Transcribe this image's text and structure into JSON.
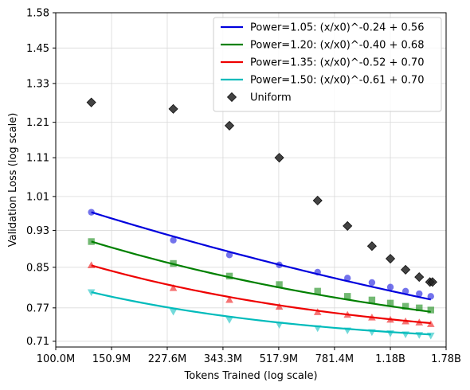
{
  "chart_data": {
    "type": "scatter",
    "xlabel": "Tokens Trained (log scale)",
    "ylabel": "Validation Loss (log scale)",
    "x_scale": "log",
    "y_scale": "log",
    "xlim": [
      100000000,
      1780000000
    ],
    "ylim": [
      0.7,
      1.58
    ],
    "grid": true,
    "legend_position": "top-right",
    "x_ticks": [
      {
        "value": 100000000,
        "label": "100.0M"
      },
      {
        "value": 150900000,
        "label": "150.9M"
      },
      {
        "value": 227600000,
        "label": "227.6M"
      },
      {
        "value": 343300000,
        "label": "343.3M"
      },
      {
        "value": 517900000,
        "label": "517.9M"
      },
      {
        "value": 781400000,
        "label": "781.4M"
      },
      {
        "value": 1180000000,
        "label": "1.18B"
      },
      {
        "value": 1780000000,
        "label": "1.78B"
      }
    ],
    "y_ticks": [
      {
        "value": 0.71,
        "label": "0.71"
      },
      {
        "value": 0.77,
        "label": "0.77"
      },
      {
        "value": 0.85,
        "label": "0.85"
      },
      {
        "value": 0.93,
        "label": "0.93"
      },
      {
        "value": 1.01,
        "label": "1.01"
      },
      {
        "value": 1.11,
        "label": "1.11"
      },
      {
        "value": 1.21,
        "label": "1.21"
      },
      {
        "value": 1.33,
        "label": "1.33"
      },
      {
        "value": 1.45,
        "label": "1.45"
      },
      {
        "value": 1.58,
        "label": "1.58"
      }
    ],
    "series": [
      {
        "name": "Power=1.05: (x/x0)^-0.24 + 0.56",
        "color": "#0000dd",
        "marker": "circle",
        "fit": {
          "exponent": -0.24,
          "offset": 0.56
        },
        "points": [
          {
            "x": 130000000,
            "y": 0.972
          },
          {
            "x": 238000000,
            "y": 0.908
          },
          {
            "x": 360000000,
            "y": 0.876
          },
          {
            "x": 520000000,
            "y": 0.855
          },
          {
            "x": 690000000,
            "y": 0.84
          },
          {
            "x": 860000000,
            "y": 0.828
          },
          {
            "x": 1030000000,
            "y": 0.819
          },
          {
            "x": 1180000000,
            "y": 0.81
          },
          {
            "x": 1320000000,
            "y": 0.802
          },
          {
            "x": 1460000000,
            "y": 0.797
          },
          {
            "x": 1590000000,
            "y": 0.792
          }
        ]
      },
      {
        "name": "Power=1.20: (x/x0)^-0.40 + 0.68",
        "color": "#008000",
        "marker": "square",
        "fit": {
          "exponent": -0.4,
          "offset": 0.68
        },
        "points": [
          {
            "x": 130000000,
            "y": 0.905
          },
          {
            "x": 238000000,
            "y": 0.858
          },
          {
            "x": 360000000,
            "y": 0.832
          },
          {
            "x": 520000000,
            "y": 0.815
          },
          {
            "x": 690000000,
            "y": 0.802
          },
          {
            "x": 860000000,
            "y": 0.792
          },
          {
            "x": 1030000000,
            "y": 0.785
          },
          {
            "x": 1180000000,
            "y": 0.779
          },
          {
            "x": 1320000000,
            "y": 0.773
          },
          {
            "x": 1460000000,
            "y": 0.77
          },
          {
            "x": 1590000000,
            "y": 0.766
          }
        ]
      },
      {
        "name": "Power=1.35: (x/x0)^-0.52 + 0.70",
        "color": "#ee0000",
        "marker": "triangle-up",
        "fit": {
          "exponent": -0.52,
          "offset": 0.7
        },
        "points": [
          {
            "x": 130000000,
            "y": 0.854
          },
          {
            "x": 238000000,
            "y": 0.808
          },
          {
            "x": 360000000,
            "y": 0.785
          },
          {
            "x": 520000000,
            "y": 0.772
          },
          {
            "x": 690000000,
            "y": 0.762
          },
          {
            "x": 860000000,
            "y": 0.757
          },
          {
            "x": 1030000000,
            "y": 0.752
          },
          {
            "x": 1180000000,
            "y": 0.748
          },
          {
            "x": 1320000000,
            "y": 0.745
          },
          {
            "x": 1460000000,
            "y": 0.743
          },
          {
            "x": 1590000000,
            "y": 0.74
          }
        ]
      },
      {
        "name": "Power=1.50: (x/x0)^-0.61 + 0.70",
        "color": "#00bbbb",
        "marker": "triangle-down",
        "fit": {
          "exponent": -0.61,
          "offset": 0.7
        },
        "points": [
          {
            "x": 130000000,
            "y": 0.8
          },
          {
            "x": 238000000,
            "y": 0.763
          },
          {
            "x": 360000000,
            "y": 0.748
          },
          {
            "x": 520000000,
            "y": 0.739
          },
          {
            "x": 690000000,
            "y": 0.733
          },
          {
            "x": 860000000,
            "y": 0.729
          },
          {
            "x": 1030000000,
            "y": 0.726
          },
          {
            "x": 1180000000,
            "y": 0.724
          },
          {
            "x": 1320000000,
            "y": 0.722
          },
          {
            "x": 1460000000,
            "y": 0.721
          },
          {
            "x": 1590000000,
            "y": 0.72
          }
        ]
      },
      {
        "name": "Uniform",
        "color": "#222222",
        "marker": "diamond",
        "points": [
          {
            "x": 130000000,
            "y": 1.27
          },
          {
            "x": 238000000,
            "y": 1.25
          },
          {
            "x": 360000000,
            "y": 1.2
          },
          {
            "x": 520000000,
            "y": 1.11
          },
          {
            "x": 690000000,
            "y": 1.0
          },
          {
            "x": 860000000,
            "y": 0.94
          },
          {
            "x": 1030000000,
            "y": 0.895
          },
          {
            "x": 1180000000,
            "y": 0.868
          },
          {
            "x": 1320000000,
            "y": 0.845
          },
          {
            "x": 1460000000,
            "y": 0.83
          },
          {
            "x": 1580000000,
            "y": 0.82
          },
          {
            "x": 1610000000,
            "y": 0.82
          }
        ]
      }
    ]
  }
}
